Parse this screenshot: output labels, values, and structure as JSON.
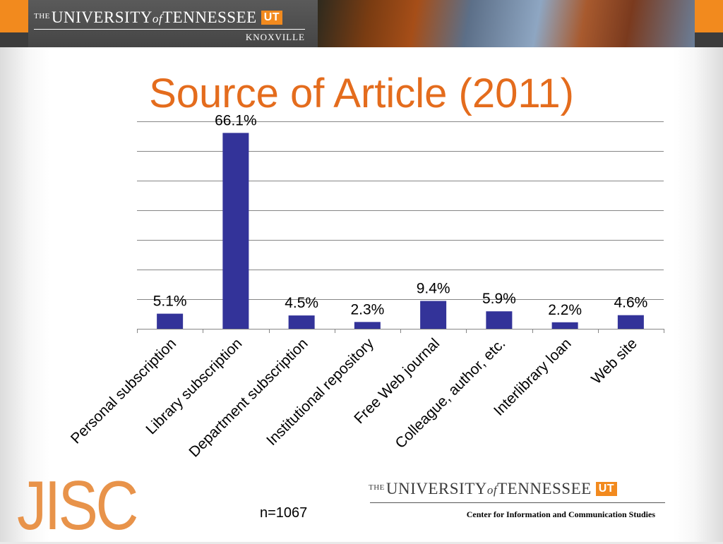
{
  "header": {
    "logo_the": "THE",
    "logo_university": "UNIVERSITY",
    "logo_of": "of",
    "logo_tennessee": "TENNESSEE",
    "logo_ut": "UT",
    "logo_campus": "KNOXVILLE"
  },
  "colors": {
    "title": "#e46c1d",
    "bar": "#333399",
    "accent_orange": "#f28a1e"
  },
  "chart_data": {
    "type": "bar",
    "title": "Source of Article (2011)",
    "categories": [
      "Personal subscription",
      "Library subscription",
      "Department subscription",
      "Institutional repository",
      "Free Web journal",
      "Colleague, author, etc.",
      "Interlibrary loan",
      "Web site"
    ],
    "values": [
      5.1,
      66.1,
      4.5,
      2.3,
      9.4,
      5.9,
      2.2,
      4.6
    ],
    "data_labels": [
      "5.1%",
      "66.1%",
      "4.5%",
      "2.3%",
      "9.4%",
      "5.9%",
      "2.2%",
      "4.6%"
    ],
    "ylim": [
      0,
      70
    ],
    "grid": true,
    "legend": "none",
    "xlabel": "",
    "ylabel": ""
  },
  "footer": {
    "sample_size": "n=1067",
    "jisc_logo": "JISC",
    "logo_the": "THE",
    "logo_university": "UNIVERSITY",
    "logo_of": "of",
    "logo_tennessee": "TENNESSEE",
    "logo_ut": "UT",
    "center_name": "Center for Information and Communication Studies"
  }
}
